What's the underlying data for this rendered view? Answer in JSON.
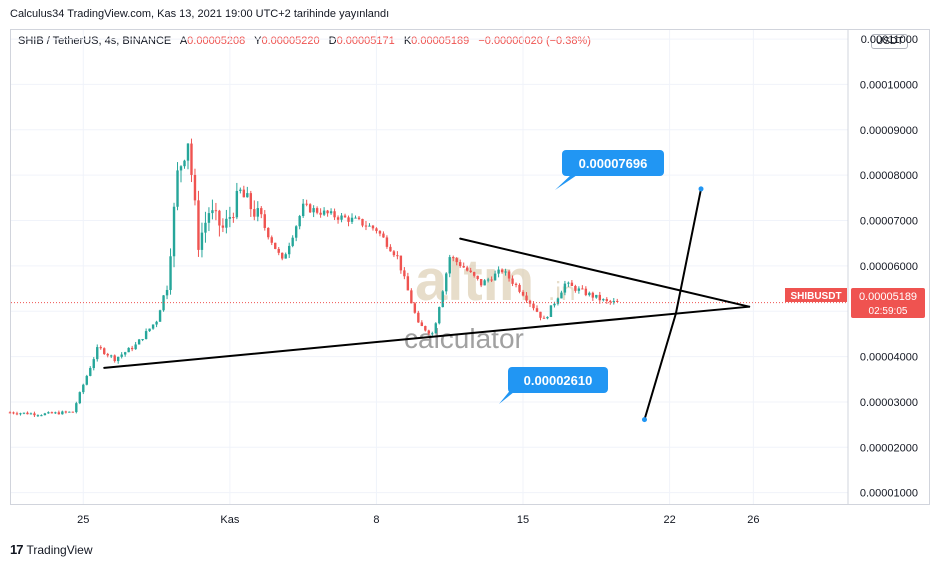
{
  "header": {
    "published": "Calculus34 TradingView.com, Kas 13, 2021 19:00 UTC+2 tarihinde yayınlandı"
  },
  "symbol": {
    "name": "SHIB / TetherUS, 4s, BINANCE",
    "ohlc": [
      {
        "label": "A",
        "value": "0.00005208"
      },
      {
        "label": "Y",
        "value": "0.00005220"
      },
      {
        "label": "D",
        "value": "0.00005171"
      },
      {
        "label": "K",
        "value": "0.00005189"
      }
    ],
    "change": "−0.00000020 (−0.38%)"
  },
  "currency": "USDT",
  "price_tag": {
    "ticker": "SHIBUSDT",
    "value": "0.00005189",
    "countdown": "02:59:05"
  },
  "targets": {
    "upper": "0.00007696",
    "lower": "0.00002610"
  },
  "watermark": {
    "word": "altın",
    "suffix": ".in",
    "tagline": "calculator"
  },
  "footer": {
    "brand": "TradingView",
    "mark": "17"
  },
  "colors": {
    "up": "#26a69a",
    "down": "#ef5350",
    "callout": "#2196f3",
    "grid": "#f0f3fa",
    "line": "#000000",
    "watermark": "#c9b48a"
  },
  "chart_data": {
    "type": "candlestick",
    "title": "",
    "xlabel": "",
    "ylabel": "",
    "x_ticks": [
      "25",
      "Kas",
      "8",
      "15",
      "22",
      "26"
    ],
    "y_ticks": [
      "0.00001000",
      "0.00002000",
      "0.00003000",
      "0.00004000",
      "0.00005000",
      "0.00006000",
      "0.00007000",
      "0.00008000",
      "0.00009000",
      "0.00010000",
      "0.00011000"
    ],
    "ylim": [
      7.5e-06,
      0.000112
    ],
    "grid": true,
    "last_price": 5.189e-05,
    "approx_price_path": [
      [
        0.0,
        2.77e-05
      ],
      [
        1.5,
        2.73e-05
      ],
      [
        3.0,
        2.78e-05
      ],
      [
        3.6,
        3.5e-05
      ],
      [
        4.2,
        4.2e-05
      ],
      [
        5.0,
        3.95e-05
      ],
      [
        6.0,
        4.25e-05
      ],
      [
        7.0,
        4.8e-05
      ],
      [
        7.5,
        5.6e-05
      ],
      [
        8.0,
        8e-05
      ],
      [
        8.5,
        8.8e-05
      ],
      [
        9.0,
        6.5e-05
      ],
      [
        9.5,
        7.2e-05
      ],
      [
        10.2,
        6.8e-05
      ],
      [
        11.0,
        7.6e-05
      ],
      [
        12.0,
        7e-05
      ],
      [
        13.0,
        6.1e-05
      ],
      [
        14.0,
        7.3e-05
      ],
      [
        15.5,
        7.1e-05
      ],
      [
        16.5,
        7e-05
      ],
      [
        17.5,
        6.8e-05
      ],
      [
        18.5,
        6.2e-05
      ],
      [
        19.5,
        4.7e-05
      ],
      [
        20.2,
        4.5e-05
      ],
      [
        21.0,
        6.2e-05
      ],
      [
        21.6,
        6e-05
      ],
      [
        22.5,
        5.6e-05
      ],
      [
        23.5,
        5.9e-05
      ],
      [
        24.5,
        5.4e-05
      ],
      [
        25.5,
        4.8e-05
      ],
      [
        26.5,
        5.6e-05
      ],
      [
        27.5,
        5.4e-05
      ],
      [
        28.5,
        5.2e-05
      ],
      [
        29.0,
        5.19e-05
      ]
    ],
    "trendlines": [
      {
        "name": "triangle-upper",
        "points": [
          [
            21.5,
            6.6e-05
          ],
          [
            35.3,
            5.1e-05
          ]
        ]
      },
      {
        "name": "triangle-lower",
        "points": [
          [
            4.5,
            3.75e-05
          ],
          [
            35.3,
            5.1e-05
          ]
        ]
      },
      {
        "name": "target-up",
        "points": [
          [
            31.8,
            4.95e-05
          ],
          [
            33.0,
            7.696e-05
          ]
        ]
      },
      {
        "name": "target-down",
        "points": [
          [
            31.8,
            4.95e-05
          ],
          [
            30.3,
            2.61e-05
          ]
        ]
      }
    ]
  }
}
